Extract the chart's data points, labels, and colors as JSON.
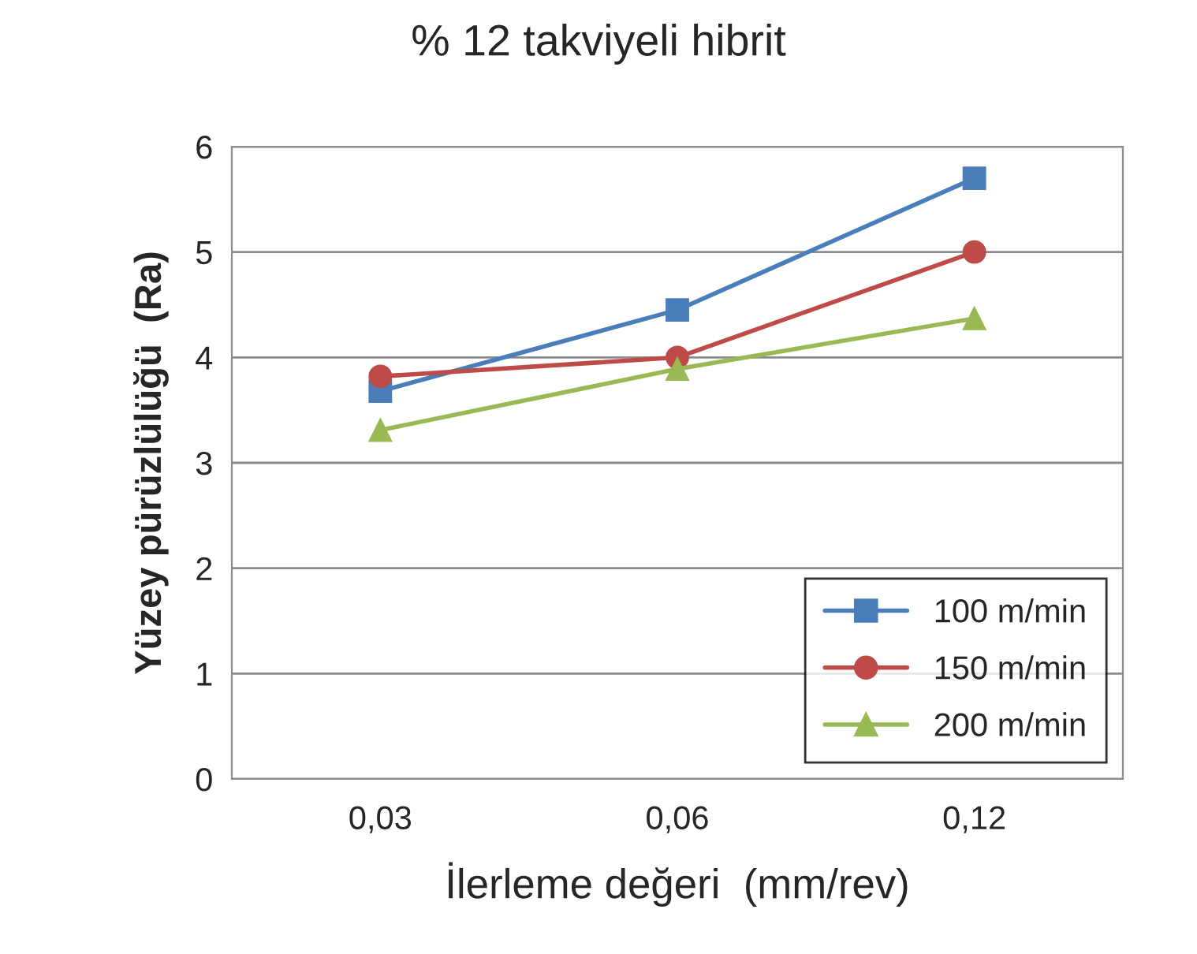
{
  "chart_data": {
    "type": "line",
    "title": "% 12 takviyeli hibrit",
    "xlabel": "İlerleme değeri  (mm/rev)",
    "ylabel": "Yüzey pürüzlülüğü  (Ra)",
    "categories": [
      "0,03",
      "0,06",
      "0,12"
    ],
    "series": [
      {
        "name": "100 m/min",
        "color": "#4a7ebb",
        "marker": "square",
        "values": [
          3.68,
          4.45,
          5.7
        ]
      },
      {
        "name": "150 m/min",
        "color": "#be4b48",
        "marker": "circle",
        "values": [
          3.82,
          4.0,
          5.0
        ]
      },
      {
        "name": "200 m/min",
        "color": "#98b954",
        "marker": "triangle",
        "values": [
          3.31,
          3.89,
          4.37
        ]
      }
    ],
    "ylim": [
      0,
      6
    ],
    "yticks": [
      0,
      1,
      2,
      3,
      4,
      5,
      6
    ],
    "grid": "y",
    "legend": "bottom right",
    "line_style": "solid"
  }
}
